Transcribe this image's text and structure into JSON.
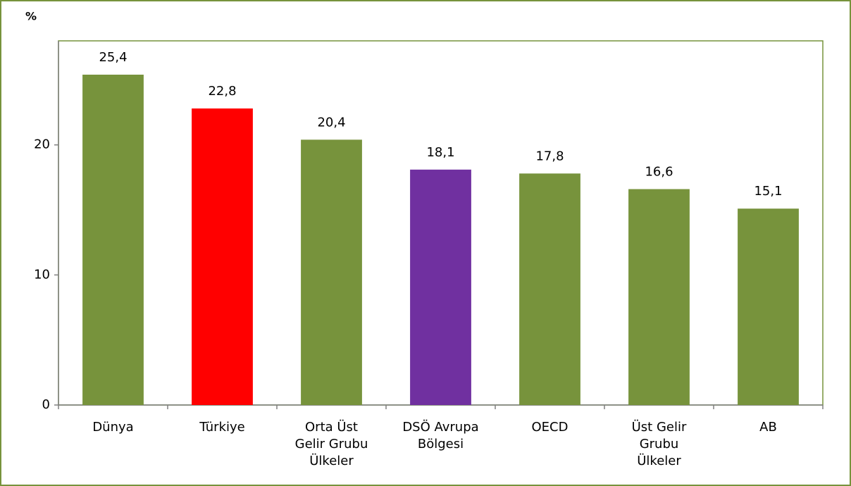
{
  "chart_data": {
    "type": "bar",
    "y_label": "%",
    "categories": [
      "Dünya",
      "Türkiye",
      "Orta Üst Gelir Grubu Ülkeler",
      "DSÖ Avrupa Bölgesi",
      "OECD",
      "Üst Gelir Grubu Ülkeler",
      "AB"
    ],
    "values": [
      25.4,
      22.8,
      20.4,
      18.1,
      17.8,
      16.6,
      15.1
    ],
    "value_labels": [
      "25,4",
      "22,8",
      "20,4",
      "18,1",
      "17,8",
      "16,6",
      "15,1"
    ],
    "colors": [
      "#77933c",
      "#ff0000",
      "#77933c",
      "#7030a0",
      "#77933c",
      "#77933c",
      "#77933c"
    ],
    "ylim": [
      0,
      28
    ],
    "yticks": [
      0,
      10,
      20
    ],
    "grid": false
  }
}
